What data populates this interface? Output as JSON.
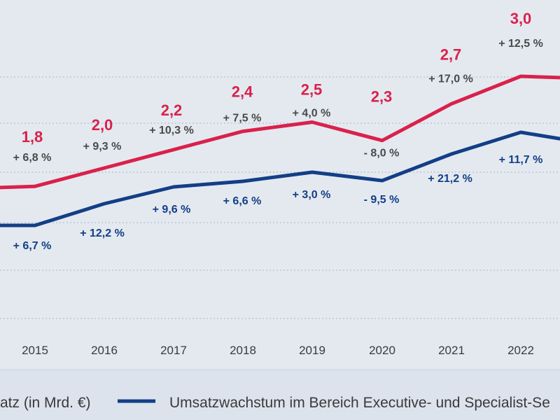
{
  "chart_data": {
    "type": "line",
    "categories": [
      "2015",
      "2016",
      "2017",
      "2018",
      "2019",
      "2020",
      "2021",
      "2022"
    ],
    "series": [
      {
        "key": "total",
        "color": "#d9214b",
        "values": [
          1.8,
          2.0,
          2.2,
          2.4,
          2.5,
          2.3,
          2.7,
          3.0
        ],
        "value_labels": [
          "1,8",
          "2,0",
          "2,2",
          "2,4",
          "2,5",
          "2,3",
          "2,7",
          "3,0"
        ],
        "growth_labels": [
          "+ 6,8 %",
          "+ 9,3 %",
          "+ 10,3 %",
          "+ 7,5 %",
          "+ 4,0 %",
          "- 8,0 %",
          "+ 17,0 %",
          "+ 12,5 %"
        ]
      },
      {
        "key": "exec",
        "name": "Umsatzwachstum im Bereich Executive- und Specialist-Se",
        "color": "#123f86",
        "growth_labels": [
          "+ 6,7 %",
          "+ 12,2 %",
          "+ 9,6 %",
          "+ 6,6 %",
          "+ 3,0 %",
          "- 9,5 %",
          "+ 21,2 %",
          "+ 11,7 %"
        ]
      }
    ],
    "legend": [
      {
        "label": "atz (in Mrd. €)",
        "color": "#d9214b"
      },
      {
        "label": "Umsatzwachstum im Bereich Executive- und Specialist-Se",
        "color": "#123f86"
      }
    ],
    "grid": true,
    "legend_position": "bottom"
  }
}
